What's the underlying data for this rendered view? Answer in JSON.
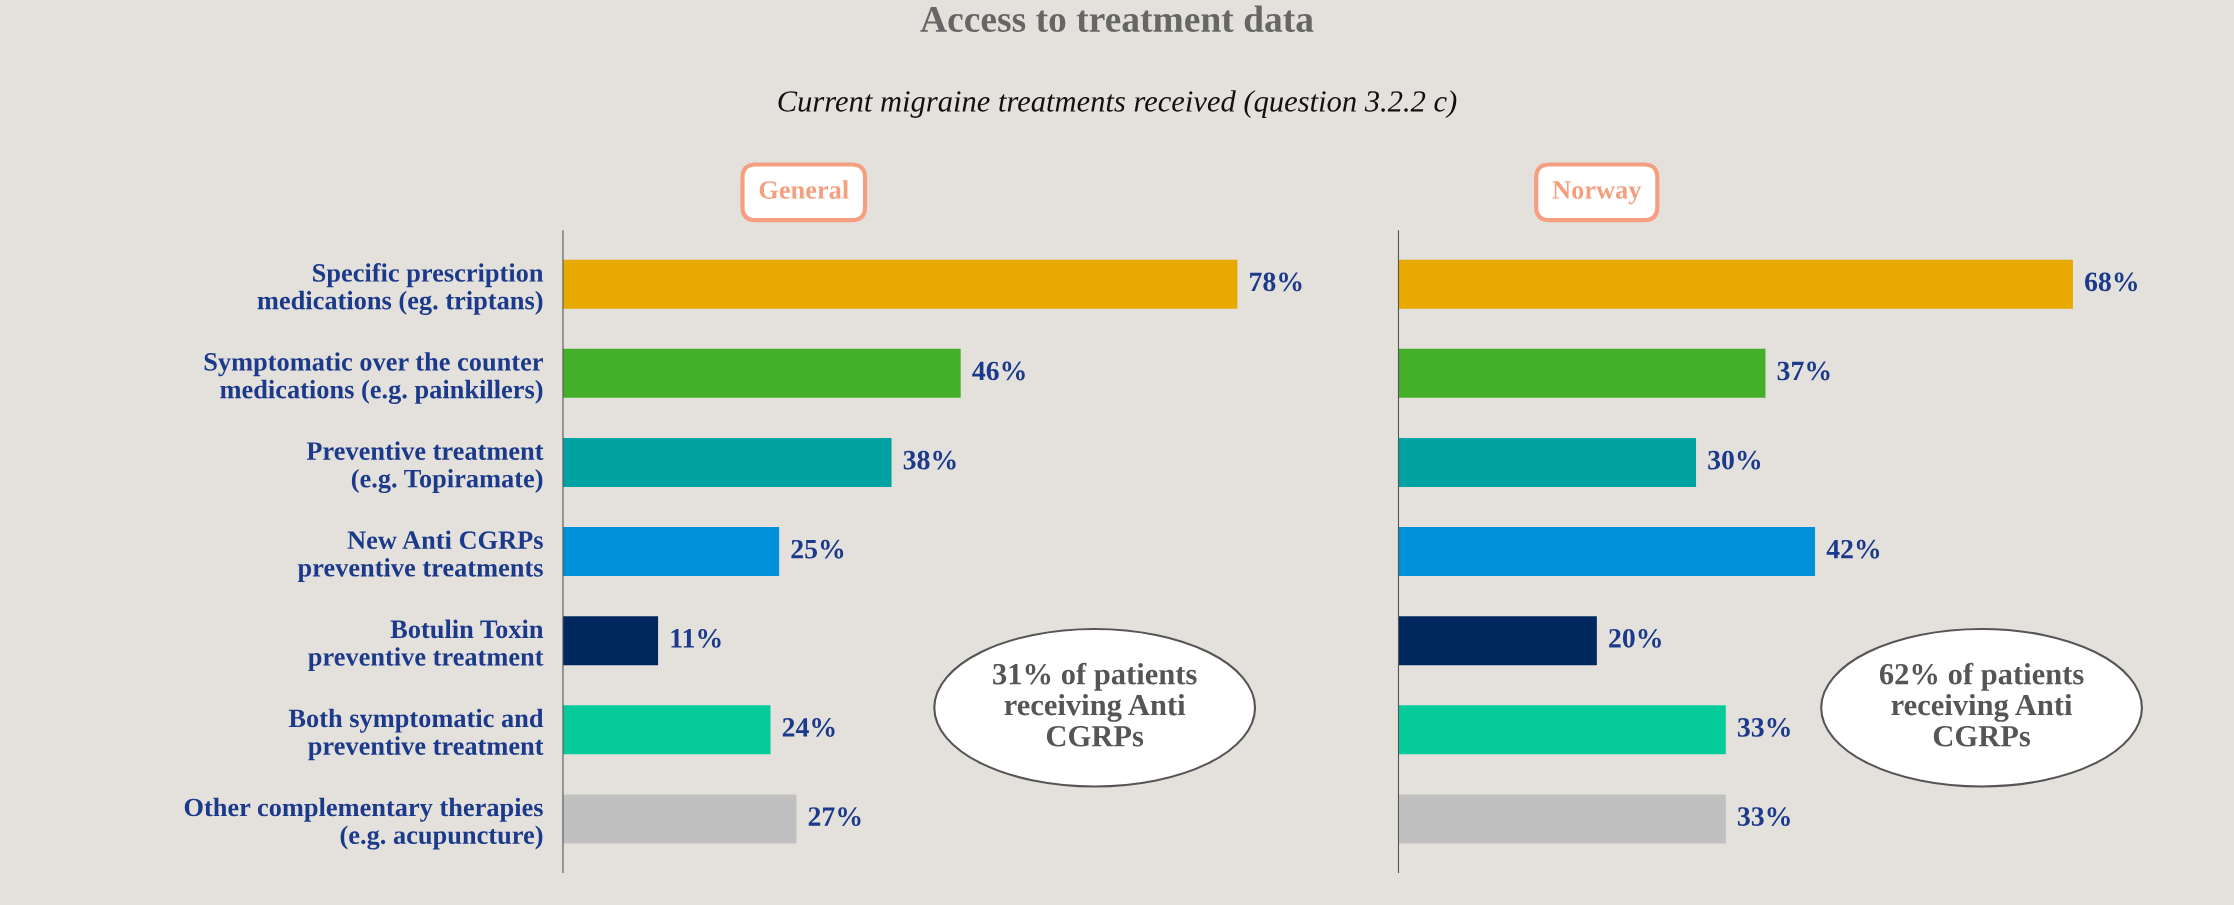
{
  "chart_data": [
    {
      "type": "bar",
      "orientation": "horizontal",
      "title": "General",
      "subtitle": "Current migraine treatments received (question 3.2.2 c)",
      "categories": [
        "Specific prescription\nmedications (eg. triptans)",
        "Symptomatic over the counter\nmedications (e.g. painkillers)",
        "Preventive treatment\n(e.g. Topiramate)",
        "New Anti CGRPs\npreventive treatments",
        "Botulin Toxin\npreventive treatment",
        "Both symptomatic and\npreventive treatment",
        "Other complementary therapies\n(e.g. acupuncture)"
      ],
      "values": [
        78,
        46,
        38,
        25,
        11,
        24,
        27
      ],
      "colors": [
        "#e8a900",
        "#44b02a",
        "#00a3a2",
        "#0091da",
        "#00285e",
        "#05cb9b",
        "#c0c0c0"
      ],
      "value_labels": [
        "78%",
        "46%",
        "38%",
        "25%",
        "11%",
        "24%",
        "27%"
      ],
      "tick_labels": "y",
      "annotations": [
        "Access to treatment data",
        "31% of patients\nreceiving Anti\nCGRPs"
      ]
    },
    {
      "type": "bar",
      "orientation": "horizontal",
      "title": "Norway",
      "categories": [
        null,
        null,
        null,
        null,
        null,
        null,
        null
      ],
      "values": [
        68,
        37,
        30,
        42,
        20,
        33,
        33
      ],
      "colors": [
        "#e8a900",
        "#44b02a",
        "#00a3a2",
        "#0091da",
        "#00285e",
        "#05cb9b",
        "#c0c0c0"
      ],
      "value_labels": [
        "68%",
        "37%",
        "30%",
        "42%",
        "20%",
        "33%",
        "33%"
      ],
      "tick_labels": false,
      "annotations": [
        "62% of patients\nreceiving Anti\nCGRPs"
      ]
    }
  ]
}
